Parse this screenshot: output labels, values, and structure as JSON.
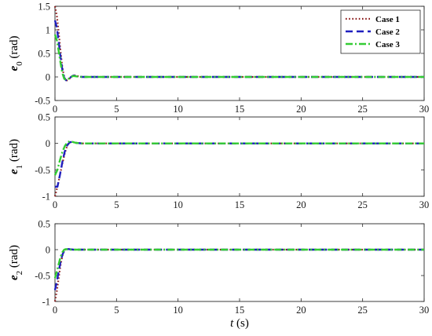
{
  "xlabel": {
    "var": "t",
    "unit": " (s)"
  },
  "colors": {
    "case1": "#8b1a1a",
    "case2": "#1f1fbf",
    "case3": "#33cc33",
    "axis": "#262626"
  },
  "legend": [
    "Case 1",
    "Case 2",
    "Case 3"
  ],
  "chart_data": [
    {
      "type": "line",
      "ylabel": {
        "var": "e",
        "sub": "0",
        "unit": " (rad)"
      },
      "xlim": [
        0,
        30
      ],
      "ylim": [
        -0.5,
        1.5
      ],
      "xticks": [
        "0",
        "5",
        "10",
        "15",
        "20",
        "25",
        "30"
      ],
      "yticks": [
        "-0.5",
        "0",
        "0.5",
        "1",
        "1.5"
      ],
      "legend_position": "top-right",
      "series": [
        {
          "name": "Case 1",
          "x": [
            0,
            0.15,
            0.3,
            0.45,
            0.6,
            0.75,
            0.9,
            1.1,
            1.3,
            1.5,
            1.8,
            2.2,
            3,
            30
          ],
          "y": [
            1.5,
            1.3,
            0.95,
            0.55,
            0.2,
            0.0,
            -0.08,
            -0.06,
            0.0,
            0.04,
            0.02,
            0.0,
            0.0,
            0.0
          ]
        },
        {
          "name": "Case 2",
          "x": [
            0,
            0.15,
            0.3,
            0.45,
            0.6,
            0.75,
            0.9,
            1.1,
            1.3,
            1.5,
            1.8,
            2.2,
            3,
            30
          ],
          "y": [
            1.2,
            1.05,
            0.75,
            0.42,
            0.15,
            -0.02,
            -0.07,
            -0.05,
            0.0,
            0.03,
            0.01,
            0.0,
            0.0,
            0.0
          ]
        },
        {
          "name": "Case 3",
          "x": [
            0,
            0.15,
            0.3,
            0.45,
            0.6,
            0.75,
            0.9,
            1.1,
            1.3,
            1.5,
            1.8,
            2.2,
            3,
            30
          ],
          "y": [
            0.9,
            0.78,
            0.55,
            0.3,
            0.08,
            -0.04,
            -0.06,
            -0.04,
            0.0,
            0.02,
            0.01,
            0.0,
            0.0,
            0.0
          ]
        }
      ]
    },
    {
      "type": "line",
      "ylabel": {
        "var": "e",
        "sub": "1",
        "unit": " (rad)"
      },
      "xlim": [
        0,
        30
      ],
      "ylim": [
        -1,
        0.5
      ],
      "xticks": [
        "0",
        "5",
        "10",
        "15",
        "20",
        "25",
        "30"
      ],
      "yticks": [
        "-1",
        "-0.5",
        "0",
        "0.5"
      ],
      "series": [
        {
          "name": "Case 1",
          "x": [
            0,
            0.2,
            0.4,
            0.6,
            0.8,
            1.0,
            1.2,
            1.4,
            1.7,
            2.2,
            3,
            30
          ],
          "y": [
            -1.0,
            -0.82,
            -0.6,
            -0.38,
            -0.18,
            -0.04,
            0.02,
            0.03,
            0.01,
            0.0,
            0.0,
            0.0
          ]
        },
        {
          "name": "Case 2",
          "x": [
            0,
            0.2,
            0.4,
            0.6,
            0.8,
            1.0,
            1.2,
            1.4,
            1.7,
            2.2,
            3,
            30
          ],
          "y": [
            -0.82,
            -0.82,
            -0.6,
            -0.35,
            -0.15,
            -0.03,
            0.02,
            0.03,
            0.01,
            0.0,
            0.0,
            0.0
          ]
        },
        {
          "name": "Case 3",
          "x": [
            0,
            0.2,
            0.4,
            0.6,
            0.8,
            1.0,
            1.2,
            1.4,
            1.7,
            2.2,
            3,
            30
          ],
          "y": [
            -0.6,
            -0.5,
            -0.32,
            -0.16,
            -0.05,
            0.02,
            0.04,
            0.03,
            0.01,
            0.0,
            0.0,
            0.0
          ]
        }
      ]
    },
    {
      "type": "line",
      "ylabel": {
        "var": "e",
        "sub": "2",
        "unit": " (rad)"
      },
      "xlim": [
        0,
        30
      ],
      "ylim": [
        -1,
        0.5
      ],
      "xticks": [
        "0",
        "5",
        "10",
        "15",
        "20",
        "25",
        "30"
      ],
      "yticks": [
        "-1",
        "-0.5",
        "0",
        "0.5"
      ],
      "series": [
        {
          "name": "Case 1",
          "x": [
            0,
            0.15,
            0.3,
            0.45,
            0.6,
            0.75,
            0.9,
            1.1,
            1.5,
            3,
            30
          ],
          "y": [
            -1.0,
            -0.8,
            -0.55,
            -0.3,
            -0.12,
            -0.02,
            0.01,
            0.01,
            0.0,
            0.0,
            0.0
          ]
        },
        {
          "name": "Case 2",
          "x": [
            0,
            0.15,
            0.3,
            0.45,
            0.6,
            0.75,
            0.9,
            1.1,
            1.5,
            3,
            30
          ],
          "y": [
            -0.78,
            -0.62,
            -0.42,
            -0.24,
            -0.1,
            -0.02,
            0.01,
            0.01,
            0.0,
            0.0,
            0.0
          ]
        },
        {
          "name": "Case 3",
          "x": [
            0,
            0.15,
            0.3,
            0.45,
            0.6,
            0.75,
            0.9,
            1.1,
            1.5,
            3,
            30
          ],
          "y": [
            -0.55,
            -0.42,
            -0.28,
            -0.14,
            -0.05,
            0.0,
            0.01,
            0.0,
            0.0,
            0.0,
            0.0
          ]
        }
      ]
    }
  ]
}
